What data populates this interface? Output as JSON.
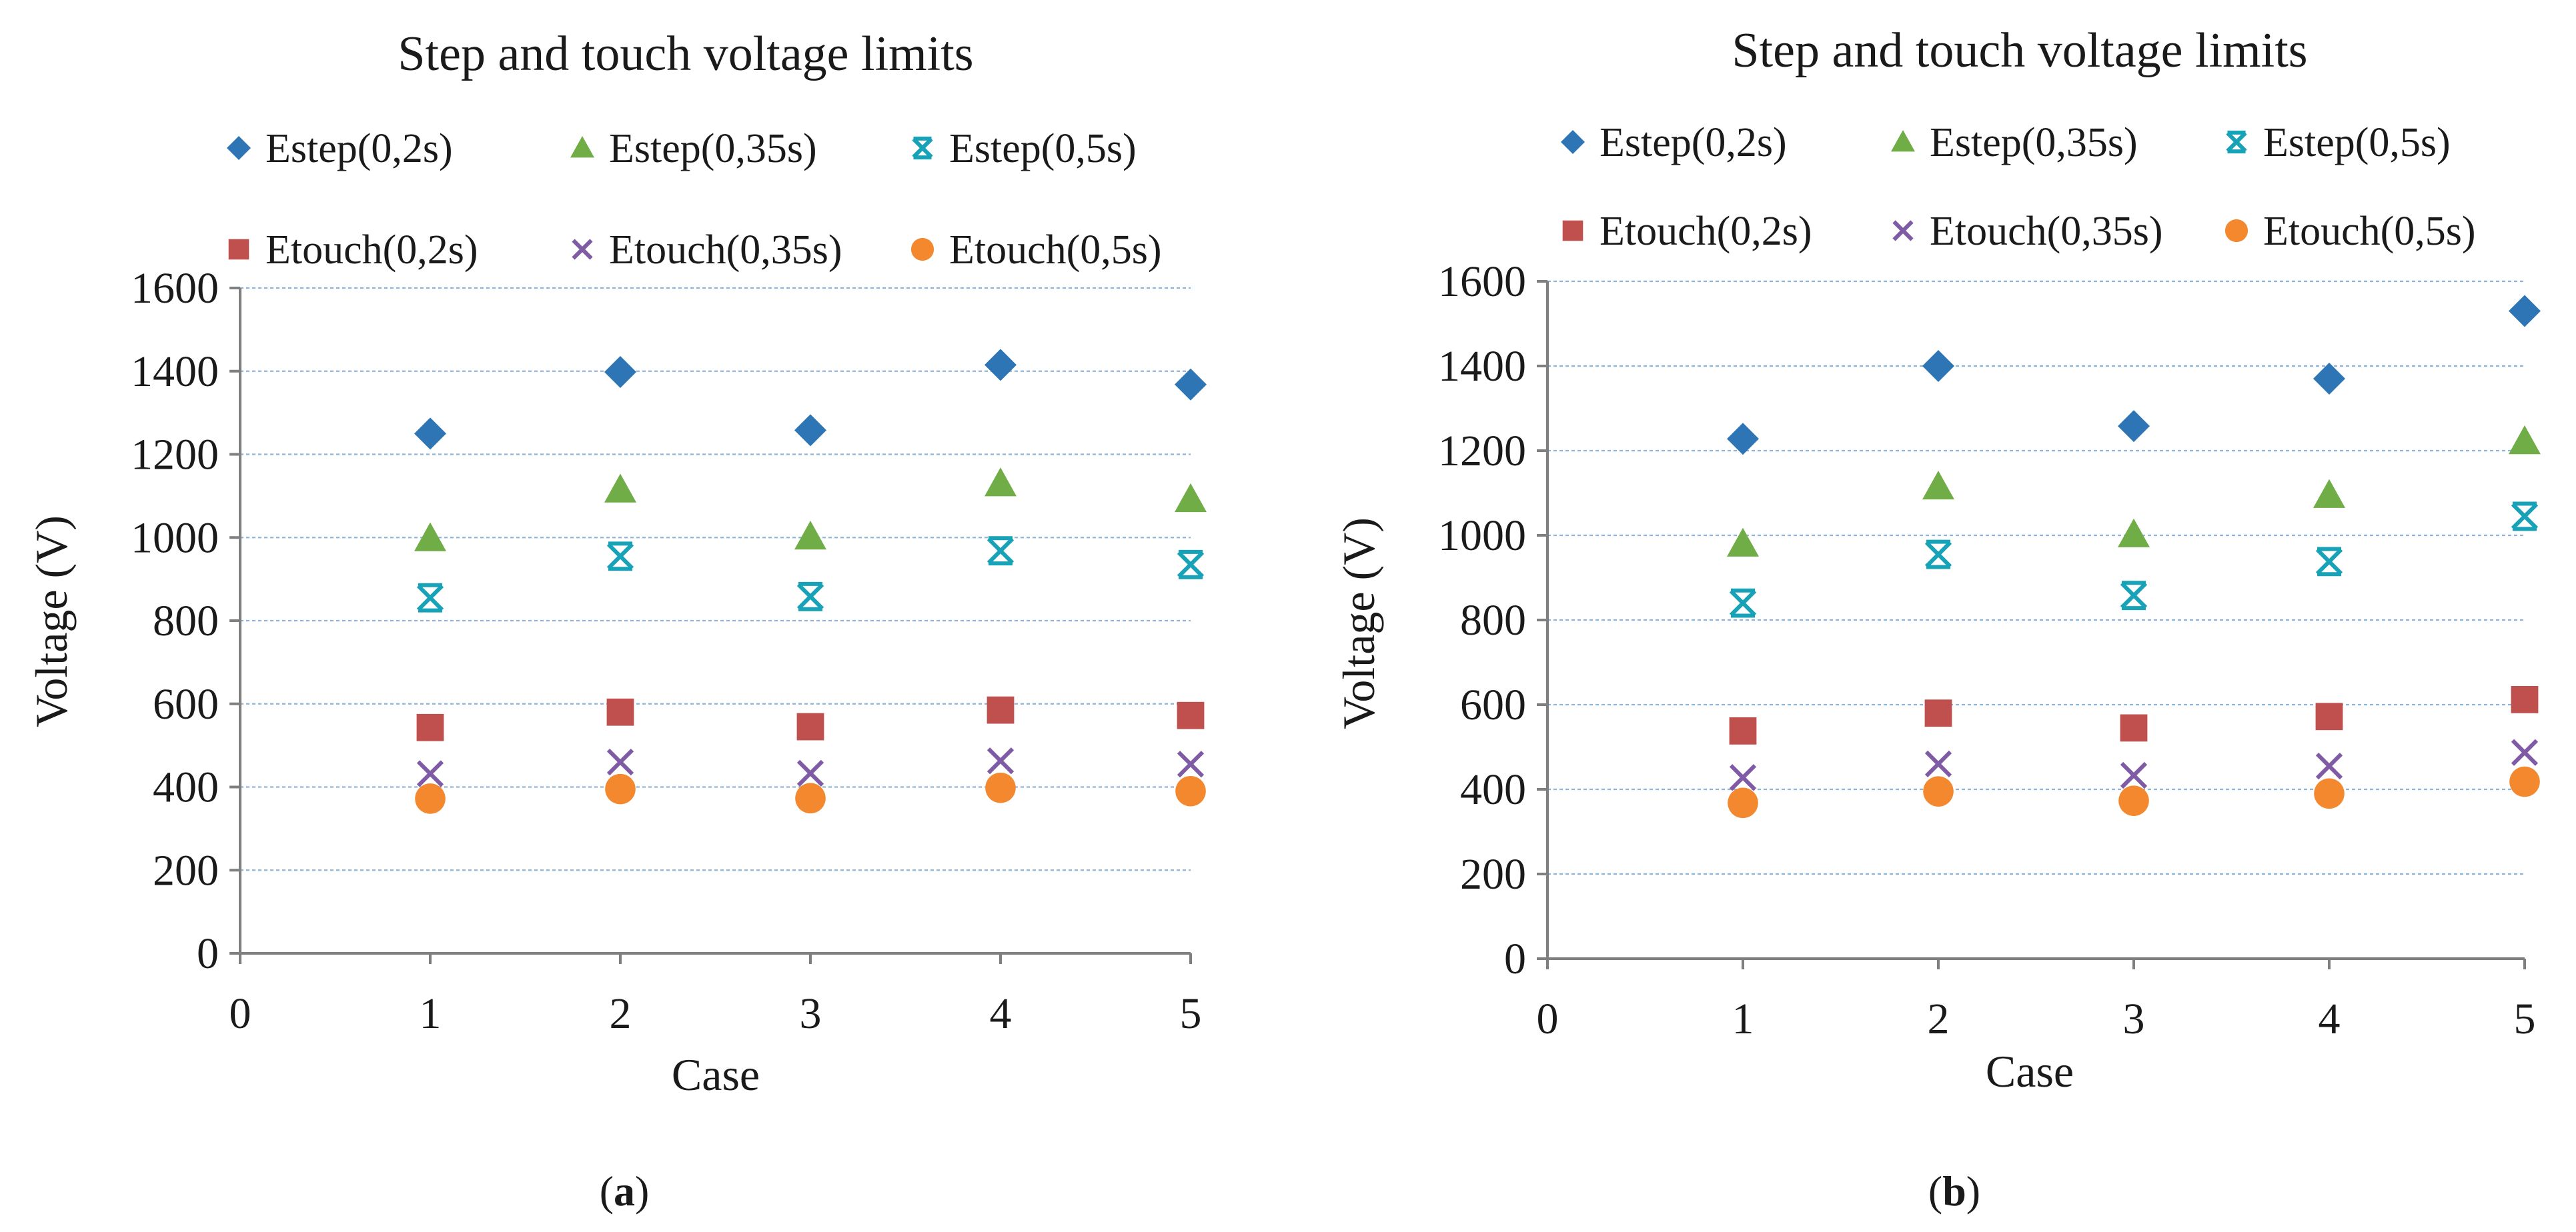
{
  "chart_data": [
    {
      "panel": "a",
      "type": "scatter",
      "title": "Step and touch voltage limits",
      "xlabel": "Case",
      "ylabel": "Voltage (V)",
      "xlim": [
        0,
        5
      ],
      "ylim": [
        0,
        1600
      ],
      "xticks": [
        0,
        1,
        2,
        3,
        4,
        5
      ],
      "yticks": [
        0,
        200,
        400,
        600,
        800,
        1000,
        1200,
        1400,
        1600
      ],
      "grid": true,
      "legend_position": "top",
      "x": [
        1,
        2,
        3,
        4,
        5
      ],
      "series": [
        {
          "name": "Estep(0,2s)",
          "marker": "diamond",
          "color": "#2e75b6",
          "values": [
            1250,
            1398,
            1258,
            1415,
            1368
          ]
        },
        {
          "name": "Estep(0,35s)",
          "marker": "triangle",
          "color": "#70ad47",
          "values": [
            998,
            1115,
            1002,
            1130,
            1092
          ]
        },
        {
          "name": "Estep(0,5s)",
          "marker": "asterisk",
          "color": "#17a2b8",
          "values": [
            855,
            955,
            858,
            968,
            935
          ]
        },
        {
          "name": "Etouch(0,2s)",
          "marker": "square",
          "color": "#c0504d",
          "values": [
            543,
            580,
            545,
            585,
            572
          ]
        },
        {
          "name": "Etouch(0,35s)",
          "marker": "x",
          "color": "#7f5ba6",
          "values": [
            432,
            460,
            433,
            463,
            455
          ]
        },
        {
          "name": "Etouch(0,5s)",
          "marker": "circle",
          "color": "#f4882f",
          "values": [
            372,
            395,
            373,
            398,
            390
          ]
        }
      ]
    },
    {
      "panel": "b",
      "type": "scatter",
      "title": "Step and touch voltage limits",
      "xlabel": "Case",
      "ylabel": "Voltage (V)",
      "xlim": [
        0,
        5
      ],
      "ylim": [
        0,
        1600
      ],
      "xticks": [
        0,
        1,
        2,
        3,
        4,
        5
      ],
      "yticks": [
        0,
        200,
        400,
        600,
        800,
        1000,
        1200,
        1400,
        1600
      ],
      "grid": true,
      "legend_position": "top",
      "x": [
        1,
        2,
        3,
        4,
        5
      ],
      "series": [
        {
          "name": "Estep(0,2s)",
          "marker": "diamond",
          "color": "#2e75b6",
          "values": [
            1228,
            1400,
            1258,
            1370,
            1530
          ]
        },
        {
          "name": "Estep(0,35s)",
          "marker": "triangle",
          "color": "#70ad47",
          "values": [
            980,
            1115,
            1002,
            1095,
            1222
          ]
        },
        {
          "name": "Estep(0,5s)",
          "marker": "asterisk",
          "color": "#17a2b8",
          "values": [
            840,
            955,
            858,
            938,
            1045
          ]
        },
        {
          "name": "Etouch(0,2s)",
          "marker": "square",
          "color": "#c0504d",
          "values": [
            538,
            580,
            545,
            572,
            612
          ]
        },
        {
          "name": "Etouch(0,35s)",
          "marker": "x",
          "color": "#7f5ba6",
          "values": [
            428,
            460,
            433,
            455,
            487
          ]
        },
        {
          "name": "Etouch(0,5s)",
          "marker": "circle",
          "color": "#f4882f",
          "values": [
            368,
            395,
            373,
            390,
            418
          ]
        }
      ]
    }
  ],
  "captions": [
    {
      "open": "(",
      "letter": "a",
      "close": ")"
    },
    {
      "open": "(",
      "letter": "b",
      "close": ")"
    }
  ]
}
